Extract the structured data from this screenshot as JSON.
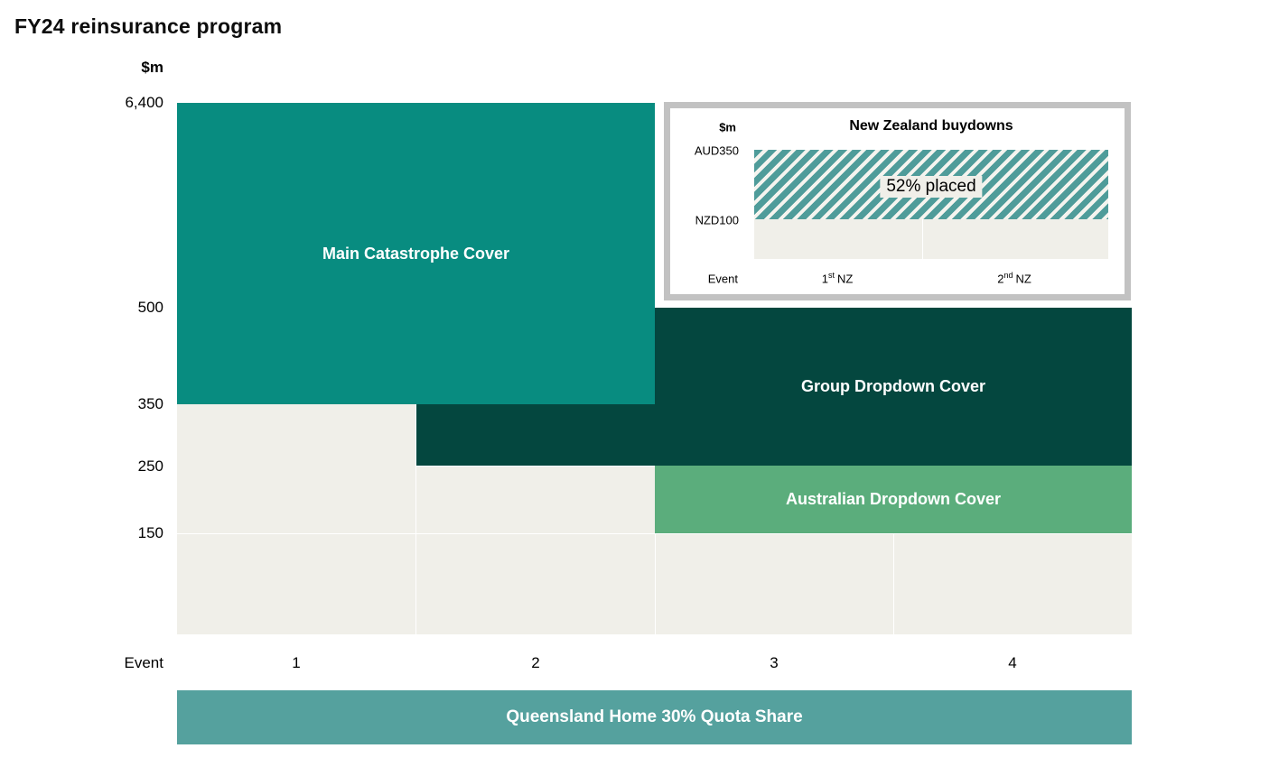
{
  "page": {
    "title": "FY24 reinsurance program"
  },
  "colors": {
    "main_teal": "#088C80",
    "dark_teal": "#04473F",
    "green": "#5BAD7C",
    "quota_teal": "#55A19E",
    "beige": "#F0EFE9",
    "hatch_teal": "#4F9C9A",
    "hatch_stripe": "#F5F4EF",
    "frame_gray": "#C2C2C2"
  },
  "main_chart": {
    "y_unit": "$m",
    "y_ticks": [
      "6,400",
      "500",
      "350",
      "250",
      "150"
    ],
    "x_axis_label": "Event",
    "x_ticks": [
      "1",
      "2",
      "3",
      "4"
    ],
    "blocks": {
      "main_catastrophe": {
        "label": "Main Catastrophe Cover"
      },
      "group_dropdown": {
        "label": "Group Dropdown Cover"
      },
      "australian_dropdown": {
        "label": "Australian Dropdown Cover"
      },
      "quota_share": {
        "label": "Queensland Home 30% Quota Share"
      }
    }
  },
  "inset": {
    "title": "New Zealand buydowns",
    "y_unit": "$m",
    "y_ticks": [
      "AUD350",
      "NZD100"
    ],
    "x_axis_label": "Event",
    "x_ticks": [
      {
        "num": "1",
        "sup": "st",
        "rest": "NZ"
      },
      {
        "num": "2",
        "sup": "nd",
        "rest": "NZ"
      }
    ],
    "bar_label": "52% placed"
  },
  "chart_data": {
    "type": "layered-tower",
    "title": "FY24 reinsurance program",
    "y_axis": {
      "unit": "$m",
      "ticks": [
        6400,
        500,
        350,
        250,
        150
      ],
      "scale": "categorical-bands"
    },
    "x_axis": {
      "label": "Event",
      "categories": [
        "1",
        "2",
        "3",
        "4"
      ]
    },
    "layers": [
      {
        "name": "Main Catastrophe Cover",
        "events": [
          "1",
          "2"
        ],
        "attach": 350,
        "exhaust": 6400,
        "color": "#088C80"
      },
      {
        "name": "",
        "events": [
          "2"
        ],
        "attach": 250,
        "exhaust": 350,
        "color": "#04473F",
        "note": "unlabeled layer below Main Catastrophe Cover"
      },
      {
        "name": "Group Dropdown Cover",
        "events": [
          "3",
          "4"
        ],
        "attach": 250,
        "exhaust": 500,
        "color": "#04473F"
      },
      {
        "name": "Australian Dropdown Cover",
        "events": [
          "3",
          "4"
        ],
        "attach": 150,
        "exhaust": 250,
        "color": "#5BAD7C"
      },
      {
        "name": "Queensland Home 30% Quota Share",
        "events": [
          "1",
          "2",
          "3",
          "4"
        ],
        "position": "below-x-axis",
        "color": "#55A19E"
      }
    ],
    "inset_chart": {
      "type": "bar",
      "title": "New Zealand buydowns",
      "y_axis": {
        "unit": "$m",
        "ticks": [
          "AUD350",
          "NZD100"
        ]
      },
      "x_axis": {
        "label": "Event",
        "categories": [
          "1st NZ",
          "2nd NZ"
        ]
      },
      "bars": [
        {
          "events": [
            "1st NZ",
            "2nd NZ"
          ],
          "attach": "NZD100",
          "exhaust": "AUD350",
          "annotation": "52% placed",
          "fill": "diagonal-hatch",
          "color": "#4F9C9A"
        }
      ]
    }
  }
}
